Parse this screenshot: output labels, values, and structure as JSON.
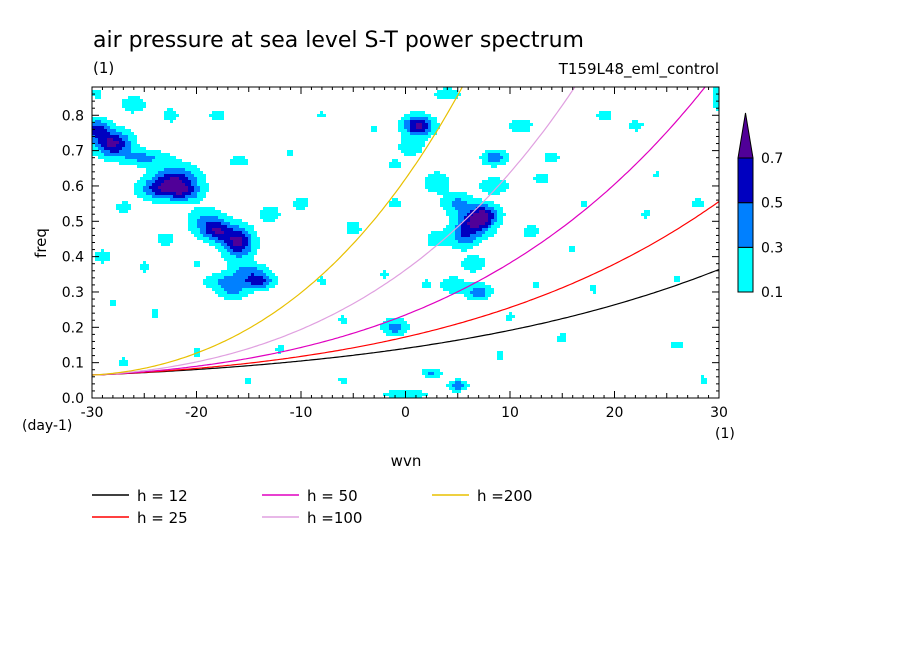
{
  "chart_data": {
    "type": "contour",
    "title": "air pressure at sea level S-T power spectrum",
    "title_unit": "(1)",
    "run_label": "T159L48_eml_control",
    "xlabel": "wvn",
    "ylabel": "freq",
    "x_unit": "(1)",
    "y_unit": "(day-1)",
    "xlim": [
      -30,
      30
    ],
    "ylim": [
      0.0,
      0.88
    ],
    "x_major_ticks": [
      -30,
      -20,
      -10,
      0,
      10,
      20,
      30
    ],
    "y_major_ticks": [
      0.0,
      0.1,
      0.2,
      0.3,
      0.4,
      0.5,
      0.6,
      0.7,
      0.8
    ],
    "tick_labels": {
      "x": [
        "-30",
        "-20",
        "-10",
        "0",
        "10",
        "20",
        "30"
      ],
      "y": [
        "0.0",
        "0.1",
        "0.2",
        "0.3",
        "0.4",
        "0.5",
        "0.6",
        "0.7",
        "0.8"
      ]
    },
    "colorbar": {
      "levels": [
        0.1,
        0.3,
        0.5,
        0.7
      ],
      "labels": [
        "0.1",
        "0.3",
        "0.5",
        "0.7"
      ],
      "colors": [
        "#00ffff",
        "#0080ff",
        "#0000c0",
        "#500098"
      ],
      "extend": "max"
    },
    "dispersion_curves": [
      {
        "name": "h = 12",
        "color": "#000000",
        "h": 12
      },
      {
        "name": "h = 25",
        "color": "#ff0000",
        "h": 25
      },
      {
        "name": "h = 50",
        "color": "#e000c0",
        "h": 50
      },
      {
        "name": "h =100",
        "color": "#e0a0e0",
        "h": 100
      },
      {
        "name": "h =200",
        "color": "#e8c000",
        "h": 200
      }
    ],
    "blobs": [
      [
        -29.5,
        0.86,
        0.8,
        0.02,
        0.12
      ],
      [
        -28.0,
        0.72,
        1.2,
        0.025,
        0.75
      ],
      [
        -29.5,
        0.76,
        0.8,
        0.02,
        0.55
      ],
      [
        -26.0,
        0.83,
        0.8,
        0.015,
        0.3
      ],
      [
        -25.0,
        0.68,
        1.5,
        0.015,
        0.35
      ],
      [
        -24.0,
        0.59,
        1.2,
        0.02,
        0.35
      ],
      [
        -22.0,
        0.61,
        1.5,
        0.03,
        0.75
      ],
      [
        -21.0,
        0.58,
        1.0,
        0.015,
        0.3
      ],
      [
        -19.0,
        0.5,
        1.2,
        0.025,
        0.35
      ],
      [
        -18.0,
        0.47,
        1.0,
        0.02,
        0.55
      ],
      [
        -16.0,
        0.44,
        1.0,
        0.03,
        0.75
      ],
      [
        -17.0,
        0.33,
        1.5,
        0.015,
        0.35
      ],
      [
        -15.0,
        0.36,
        1.2,
        0.015,
        0.35
      ],
      [
        -14.0,
        0.33,
        1.0,
        0.015,
        0.55
      ],
      [
        -16.5,
        0.3,
        1.0,
        0.015,
        0.3
      ],
      [
        -13.0,
        0.52,
        0.8,
        0.02,
        0.2
      ],
      [
        -23.0,
        0.45,
        0.8,
        0.02,
        0.15
      ],
      [
        -27.0,
        0.54,
        0.8,
        0.015,
        0.15
      ],
      [
        -22.5,
        0.8,
        0.8,
        0.02,
        0.15
      ],
      [
        -18.0,
        0.8,
        0.8,
        0.015,
        0.15
      ],
      [
        -16.0,
        0.67,
        1.0,
        0.015,
        0.15
      ],
      [
        -29.0,
        0.4,
        0.8,
        0.02,
        0.15
      ],
      [
        -27.0,
        0.1,
        0.8,
        0.02,
        0.12
      ],
      [
        -24.0,
        0.24,
        0.6,
        0.02,
        0.12
      ],
      [
        -10.0,
        0.55,
        0.8,
        0.02,
        0.15
      ],
      [
        -8.0,
        0.33,
        0.6,
        0.02,
        0.12
      ],
      [
        -5.0,
        0.48,
        0.8,
        0.02,
        0.15
      ],
      [
        -6.0,
        0.22,
        0.6,
        0.02,
        0.12
      ],
      [
        1.2,
        0.77,
        1.0,
        0.02,
        0.75
      ],
      [
        0.5,
        0.71,
        0.8,
        0.015,
        0.3
      ],
      [
        3.0,
        0.61,
        0.8,
        0.02,
        0.3
      ],
      [
        5.0,
        0.55,
        1.0,
        0.02,
        0.35
      ],
      [
        6.5,
        0.49,
        1.2,
        0.025,
        0.65
      ],
      [
        7.5,
        0.52,
        1.0,
        0.02,
        0.6
      ],
      [
        8.5,
        0.6,
        1.0,
        0.015,
        0.3
      ],
      [
        8.5,
        0.68,
        0.8,
        0.015,
        0.45
      ],
      [
        5.5,
        0.45,
        0.8,
        0.02,
        0.35
      ],
      [
        4.5,
        0.32,
        0.8,
        0.015,
        0.3
      ],
      [
        6.5,
        0.38,
        0.8,
        0.015,
        0.3
      ],
      [
        7.0,
        0.3,
        0.8,
        0.015,
        0.45
      ],
      [
        -1.0,
        0.2,
        0.8,
        0.015,
        0.45
      ],
      [
        2.5,
        0.07,
        0.6,
        0.01,
        0.35
      ],
      [
        5.0,
        0.035,
        0.6,
        0.01,
        0.5
      ],
      [
        0.0,
        0.01,
        1.5,
        0.01,
        0.25
      ],
      [
        -1.0,
        0.66,
        0.8,
        0.015,
        0.15
      ],
      [
        3.0,
        0.45,
        0.8,
        0.02,
        0.2
      ],
      [
        2.0,
        0.32,
        0.6,
        0.02,
        0.12
      ],
      [
        4.0,
        0.86,
        1.0,
        0.015,
        0.2
      ],
      [
        11.0,
        0.77,
        0.8,
        0.015,
        0.25
      ],
      [
        13.0,
        0.62,
        0.8,
        0.015,
        0.15
      ],
      [
        14.0,
        0.68,
        0.8,
        0.015,
        0.15
      ],
      [
        12.0,
        0.47,
        0.8,
        0.02,
        0.15
      ],
      [
        16.0,
        0.42,
        0.6,
        0.015,
        0.12
      ],
      [
        15.0,
        0.17,
        0.8,
        0.02,
        0.12
      ],
      [
        22.0,
        0.77,
        0.8,
        0.015,
        0.15
      ],
      [
        28.0,
        0.55,
        0.8,
        0.015,
        0.15
      ],
      [
        26.0,
        0.15,
        0.8,
        0.02,
        0.12
      ],
      [
        23.0,
        0.52,
        0.6,
        0.02,
        0.12
      ],
      [
        19.0,
        0.8,
        0.8,
        0.015,
        0.15
      ],
      [
        18.0,
        0.31,
        0.6,
        0.02,
        0.12
      ],
      [
        28.5,
        0.05,
        0.6,
        0.02,
        0.12
      ],
      [
        30.0,
        0.85,
        0.6,
        0.03,
        0.2
      ],
      [
        10.0,
        0.23,
        0.6,
        0.02,
        0.12
      ],
      [
        9.0,
        0.12,
        0.6,
        0.02,
        0.12
      ],
      [
        -12.0,
        0.14,
        0.6,
        0.02,
        0.12
      ],
      [
        -20.0,
        0.13,
        0.6,
        0.02,
        0.12
      ],
      [
        -3.0,
        0.76,
        0.6,
        0.015,
        0.12
      ],
      [
        -8.0,
        0.8,
        0.6,
        0.015,
        0.12
      ],
      [
        -11.0,
        0.69,
        0.6,
        0.015,
        0.12
      ],
      [
        -1.0,
        0.55,
        0.6,
        0.015,
        0.15
      ],
      [
        -2.0,
        0.35,
        0.6,
        0.015,
        0.12
      ],
      [
        -28.0,
        0.27,
        0.6,
        0.02,
        0.12
      ],
      [
        -20.0,
        0.38,
        0.6,
        0.015,
        0.12
      ],
      [
        -25.0,
        0.37,
        0.6,
        0.015,
        0.15
      ],
      [
        -6.0,
        0.05,
        0.6,
        0.015,
        0.12
      ],
      [
        -15.0,
        0.05,
        0.6,
        0.015,
        0.12
      ],
      [
        24.0,
        0.63,
        0.6,
        0.015,
        0.12
      ],
      [
        26.0,
        0.34,
        0.6,
        0.015,
        0.12
      ],
      [
        17.0,
        0.55,
        0.6,
        0.015,
        0.12
      ],
      [
        12.5,
        0.32,
        0.6,
        0.015,
        0.12
      ]
    ]
  }
}
